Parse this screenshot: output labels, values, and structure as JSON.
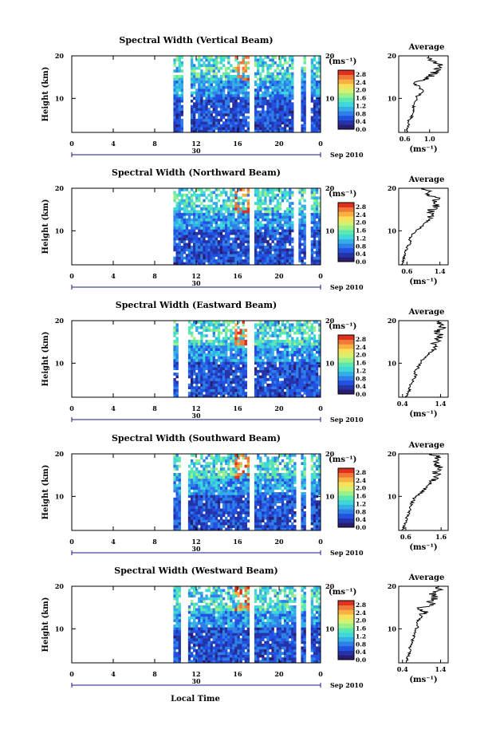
{
  "xaxis_title": "Local Time",
  "colormap": [
    "#2a1c6e",
    "#2433a8",
    "#2250e0",
    "#2f7fe8",
    "#35aee8",
    "#3fd8d8",
    "#5ae8b0",
    "#9cf08a",
    "#d6f070",
    "#f8e05a",
    "#f8b040",
    "#f07838",
    "#e03020"
  ],
  "chart_data": [
    {
      "type": "heatmap",
      "title": "Spectral Width (Vertical Beam)",
      "ylabel": "Height (km)",
      "yticks": [
        "20",
        "10"
      ],
      "xticks": [
        "0",
        "4",
        "8",
        "12",
        "16",
        "20",
        "0"
      ],
      "day_label": "30",
      "date_label": "Sep 2010",
      "xlim": [
        0,
        24
      ],
      "ylim": [
        2,
        20
      ],
      "data_start_hour": 9.8,
      "gaps_hours": [
        [
          10.8,
          11.3
        ],
        [
          17.2,
          17.6
        ],
        [
          21.6,
          21.9
        ],
        [
          22.7,
          23.0
        ]
      ],
      "colorbar": {
        "unit": "(ms⁻¹)",
        "labels": [
          "2.8",
          "2.4",
          "2.0",
          "1.6",
          "1.2",
          "0.8",
          "0.4",
          "0.0"
        ],
        "range": [
          0,
          3.0
        ]
      },
      "average": {
        "title": "Average",
        "unit": "(ms⁻¹)",
        "xticks": [
          "0.6",
          "1.0"
        ],
        "xlim": [
          0.5,
          1.3
        ],
        "yticks": [
          "20",
          "10"
        ],
        "profile": [
          0.62,
          0.64,
          0.66,
          0.65,
          0.7,
          0.72,
          0.73,
          0.74,
          0.76,
          0.78,
          0.8,
          0.9,
          0.85,
          0.8,
          0.82,
          1.0,
          1.05,
          1.1,
          1.18,
          1.12,
          1.0,
          0.95
        ]
      }
    },
    {
      "type": "heatmap",
      "title": "Spectral Width (Northward Beam)",
      "ylabel": "Height (km)",
      "yticks": [
        "20",
        "10"
      ],
      "xticks": [
        "0",
        "4",
        "8",
        "12",
        "16",
        "20",
        "0"
      ],
      "day_label": "30",
      "date_label": "Sep 2010",
      "xlim": [
        0,
        24
      ],
      "ylim": [
        2,
        20
      ],
      "data_start_hour": 9.8,
      "gaps_hours": [
        [
          17.2,
          17.5
        ],
        [
          21.6,
          21.8
        ],
        [
          22.8,
          23.0
        ]
      ],
      "colorbar": {
        "unit": "(ms⁻¹)",
        "labels": [
          "2.8",
          "2.4",
          "2.0",
          "1.6",
          "1.2",
          "0.8",
          "0.4",
          "0.0"
        ],
        "range": [
          0,
          3.0
        ]
      },
      "average": {
        "title": "Average",
        "unit": "(ms⁻¹)",
        "xticks": [
          "0.6",
          "1.4"
        ],
        "xlim": [
          0.4,
          1.6
        ],
        "yticks": [
          "20",
          "10"
        ],
        "profile": [
          0.45,
          0.5,
          0.52,
          0.55,
          0.58,
          0.6,
          0.7,
          0.65,
          0.7,
          0.8,
          0.9,
          1.0,
          1.1,
          1.2,
          1.15,
          1.2,
          1.3,
          1.25,
          1.35,
          1.2,
          1.1,
          1.0
        ]
      }
    },
    {
      "type": "heatmap",
      "title": "Spectral Width (Eastward Beam)",
      "ylabel": "Height (km)",
      "yticks": [
        "20",
        "10"
      ],
      "xticks": [
        "0",
        "4",
        "8",
        "12",
        "16",
        "20",
        "0"
      ],
      "day_label": "30",
      "date_label": "Sep 2010",
      "xlim": [
        0,
        24
      ],
      "ylim": [
        2,
        20
      ],
      "data_start_hour": 9.8,
      "gaps_hours": [
        [
          10.5,
          11.0
        ],
        [
          17.1,
          17.6
        ]
      ],
      "colorbar": {
        "unit": "(ms⁻¹)",
        "labels": [
          "2.8",
          "2.4",
          "2.0",
          "1.6",
          "1.2",
          "0.8",
          "0.4",
          "0.0"
        ],
        "range": [
          0,
          3.0
        ]
      },
      "average": {
        "title": "Average",
        "unit": "(ms⁻¹)",
        "xticks": [
          "0.4",
          "1.4"
        ],
        "xlim": [
          0.3,
          1.6
        ],
        "yticks": [
          "20",
          "10"
        ],
        "profile": [
          0.5,
          0.55,
          0.6,
          0.58,
          0.65,
          0.7,
          0.75,
          0.72,
          0.8,
          0.85,
          0.9,
          1.0,
          1.1,
          1.2,
          1.3,
          1.25,
          1.35,
          1.4,
          1.3,
          1.45,
          1.4,
          1.3
        ]
      }
    },
    {
      "type": "heatmap",
      "title": "Spectral Width (Southward Beam)",
      "ylabel": "Height (km)",
      "yticks": [
        "20",
        "10"
      ],
      "xticks": [
        "0",
        "4",
        "8",
        "12",
        "16",
        "20",
        "0"
      ],
      "day_label": "30",
      "date_label": "Sep 2010",
      "xlim": [
        0,
        24
      ],
      "ylim": [
        2,
        20
      ],
      "data_start_hour": 9.8,
      "gaps_hours": [
        [
          10.6,
          11.0
        ],
        [
          17.2,
          17.5
        ],
        [
          21.7,
          22.0
        ],
        [
          22.8,
          23.0
        ]
      ],
      "colorbar": {
        "unit": "(ms⁻¹)",
        "labels": [
          "2.8",
          "2.4",
          "2.0",
          "1.6",
          "1.2",
          "0.8",
          "0.4",
          "0.0"
        ],
        "range": [
          0,
          3.0
        ]
      },
      "average": {
        "title": "Average",
        "unit": "(ms⁻¹)",
        "xticks": [
          "0.6",
          "1.6"
        ],
        "xlim": [
          0.4,
          1.8
        ],
        "yticks": [
          "20",
          "10"
        ],
        "profile": [
          0.5,
          0.55,
          0.6,
          0.62,
          0.65,
          0.7,
          0.72,
          0.75,
          0.8,
          0.85,
          1.0,
          1.1,
          1.2,
          1.3,
          1.4,
          1.5,
          1.45,
          1.6,
          1.5,
          1.4,
          1.55,
          1.3
        ]
      }
    },
    {
      "type": "heatmap",
      "title": "Spectral Width (Westward Beam)",
      "ylabel": "Height (km)",
      "yticks": [
        "20",
        "10"
      ],
      "xticks": [
        "0",
        "4",
        "8",
        "12",
        "16",
        "20",
        "0"
      ],
      "day_label": "30",
      "date_label": "Sep 2010",
      "xlim": [
        0,
        24
      ],
      "ylim": [
        2,
        20
      ],
      "data_start_hour": 9.8,
      "gaps_hours": [
        [
          10.7,
          11.2
        ],
        [
          17.2,
          17.6
        ],
        [
          21.8,
          22.0
        ],
        [
          22.8,
          23.0
        ]
      ],
      "colorbar": {
        "unit": "(ms⁻¹)",
        "labels": [
          "2.8",
          "2.4",
          "2.0",
          "1.6",
          "1.2",
          "0.8",
          "0.4",
          "0.0"
        ],
        "range": [
          0,
          3.0
        ]
      },
      "average": {
        "title": "Average",
        "unit": "(ms⁻¹)",
        "xticks": [
          "0.4",
          "1.4"
        ],
        "xlim": [
          0.3,
          1.6
        ],
        "yticks": [
          "20",
          "10"
        ],
        "profile": [
          0.5,
          0.52,
          0.55,
          0.58,
          0.6,
          0.62,
          0.65,
          0.7,
          0.72,
          0.75,
          0.8,
          0.78,
          0.85,
          0.9,
          1.0,
          0.8,
          1.2,
          1.1,
          1.3,
          1.2,
          1.4,
          1.3
        ]
      }
    }
  ]
}
